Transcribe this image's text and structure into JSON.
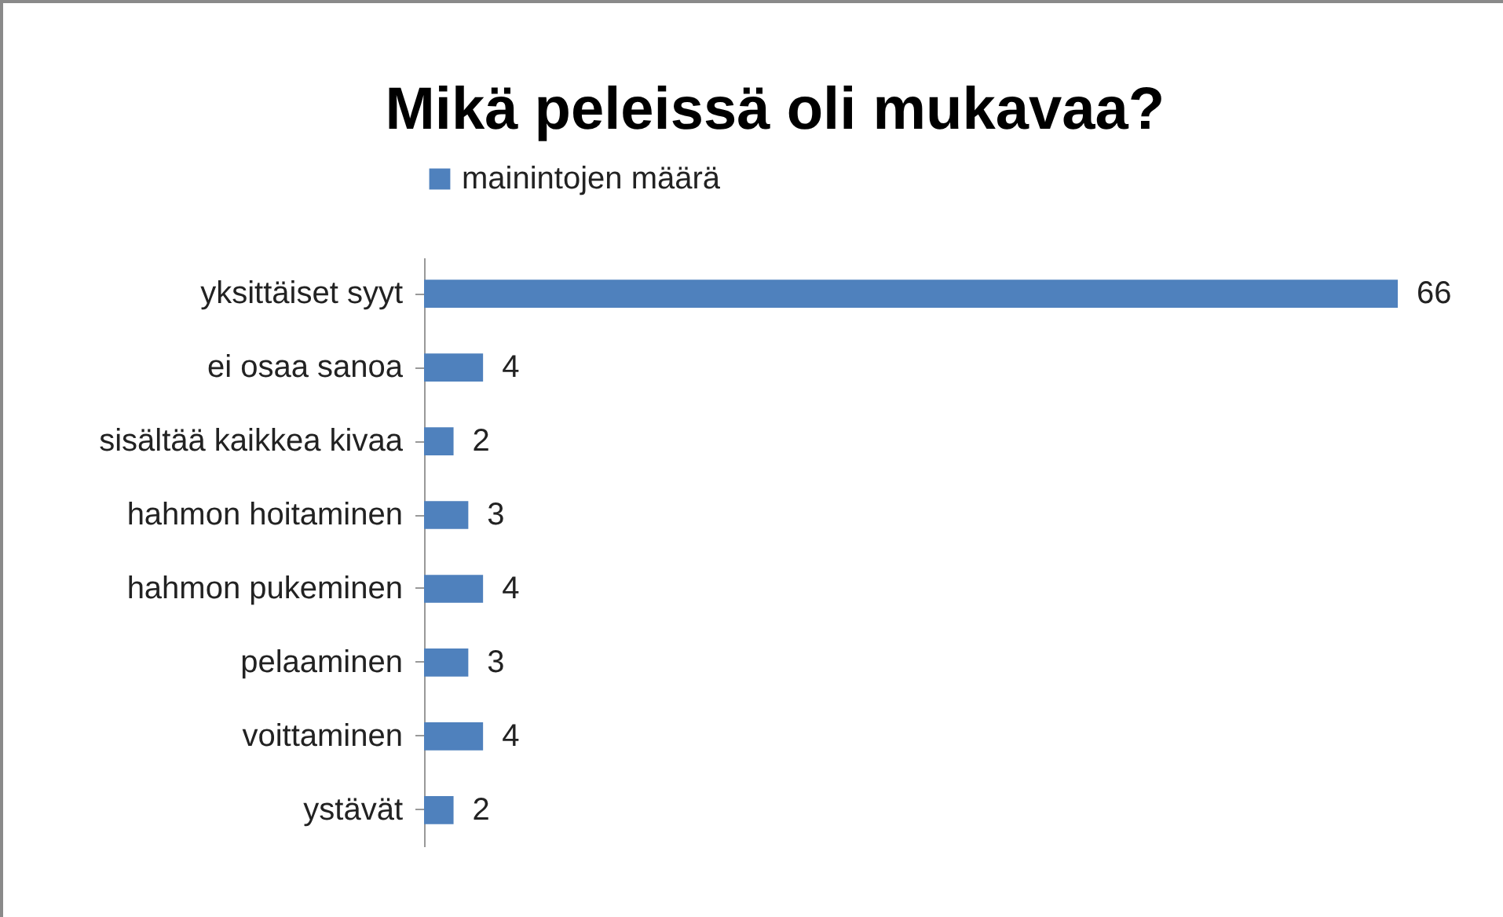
{
  "chart_data": {
    "type": "bar",
    "orientation": "horizontal",
    "title": "Mikä peleissä oli mukavaa?",
    "categories": [
      "yksittäiset syyt",
      "ei osaa sanoa",
      "sisältää kaikkea kivaa",
      "hahmon hoitaminen",
      "hahmon pukeminen",
      "pelaaminen",
      "voittaminen",
      "ystävät"
    ],
    "series": [
      {
        "name": "mainintojen määrä",
        "color": "#4f81bd",
        "values": [
          66,
          4,
          2,
          3,
          4,
          3,
          4,
          2
        ]
      }
    ],
    "data_labels": true,
    "legend": "top"
  }
}
